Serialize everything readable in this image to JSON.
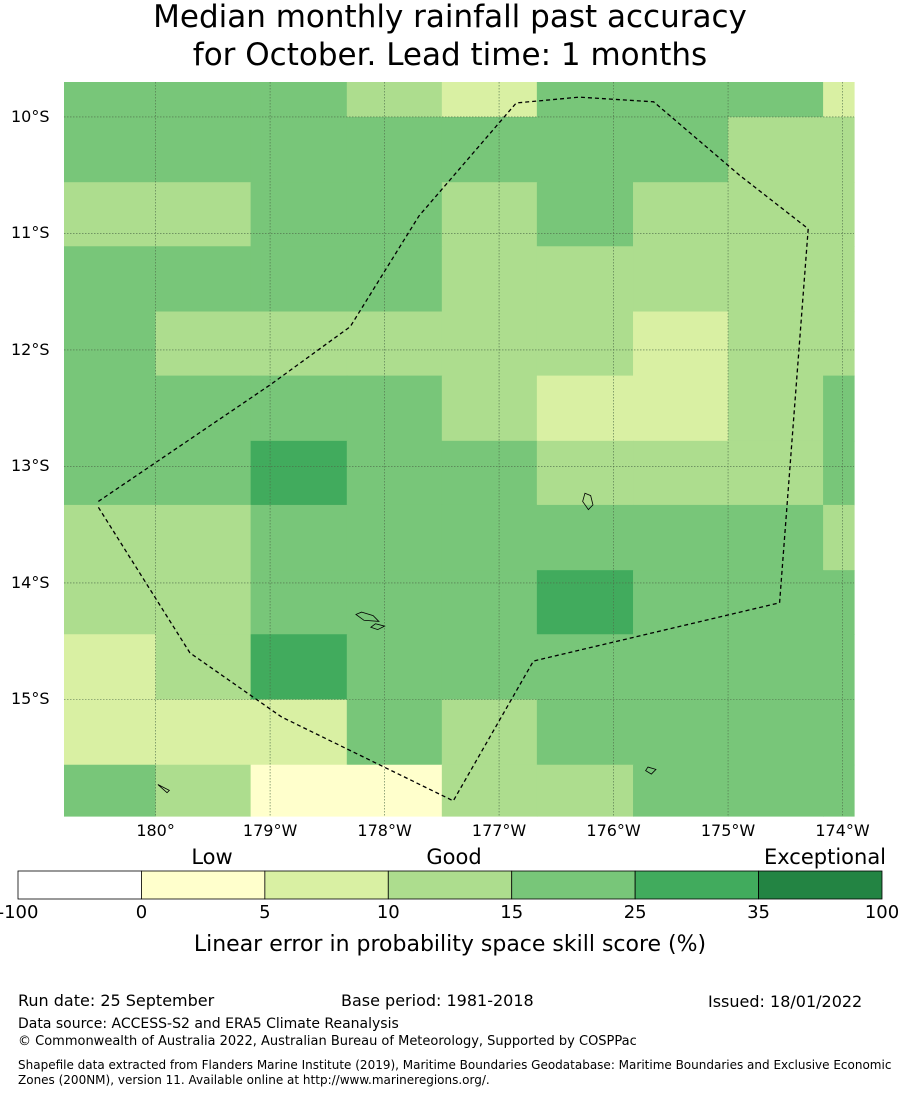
{
  "title_line1": "Median monthly rainfall past accuracy",
  "title_line2": "for October. Lead time: 1 months",
  "map": {
    "lon_range": [
      -180.8,
      -173.9
    ],
    "lat_range": [
      -16.0,
      -9.7
    ],
    "lat_ticks": [
      {
        "lat": -10,
        "label": "10°S"
      },
      {
        "lat": -11,
        "label": "11°S"
      },
      {
        "lat": -12,
        "label": "12°S"
      },
      {
        "lat": -13,
        "label": "13°S"
      },
      {
        "lat": -14,
        "label": "14°S"
      },
      {
        "lat": -15,
        "label": "15°S"
      }
    ],
    "lon_ticks": [
      {
        "lon": -180,
        "label": "180°"
      },
      {
        "lon": -179,
        "label": "179°W"
      },
      {
        "lon": -178,
        "label": "178°W"
      },
      {
        "lon": -177,
        "label": "177°W"
      },
      {
        "lon": -176,
        "label": "176°W"
      },
      {
        "lon": -175,
        "label": "175°W"
      },
      {
        "lon": -174,
        "label": "174°W"
      }
    ],
    "grid_lines": true,
    "skill_grid": {
      "lon_edges": [
        -180.8,
        -180.0,
        -179.17,
        -178.33,
        -177.5,
        -176.67,
        -175.83,
        -175.0,
        -174.17,
        -173.9
      ],
      "lat_edges": [
        -9.7,
        -10.0,
        -10.56,
        -11.11,
        -11.67,
        -12.22,
        -12.78,
        -13.33,
        -13.89,
        -14.44,
        -15.0,
        -15.56,
        -16.0
      ],
      "values_pct": [
        [
          20,
          20,
          20,
          12,
          7,
          20,
          20,
          20,
          7
        ],
        [
          20,
          20,
          20,
          20,
          20,
          20,
          20,
          12,
          12
        ],
        [
          12,
          12,
          20,
          20,
          12,
          20,
          12,
          12,
          12
        ],
        [
          20,
          20,
          20,
          20,
          12,
          12,
          12,
          12,
          12
        ],
        [
          20,
          12,
          12,
          12,
          12,
          12,
          7,
          12,
          12
        ],
        [
          20,
          20,
          20,
          20,
          12,
          7,
          7,
          12,
          20
        ],
        [
          20,
          20,
          30,
          20,
          20,
          12,
          12,
          12,
          20
        ],
        [
          12,
          12,
          20,
          20,
          20,
          20,
          20,
          20,
          12
        ],
        [
          12,
          12,
          20,
          20,
          20,
          30,
          20,
          20,
          20
        ],
        [
          7,
          12,
          30,
          20,
          20,
          20,
          20,
          20,
          20
        ],
        [
          7,
          7,
          7,
          20,
          12,
          20,
          20,
          20,
          20
        ],
        [
          20,
          12,
          3,
          3,
          12,
          12,
          20,
          20,
          20
        ]
      ]
    },
    "eez_boundary": [
      [
        -180.5,
        -13.3
      ],
      [
        -179.0,
        -12.3
      ],
      [
        -178.3,
        -11.8
      ],
      [
        -177.7,
        -10.85
      ],
      [
        -176.85,
        -9.88
      ],
      [
        -176.3,
        -9.83
      ],
      [
        -175.65,
        -9.87
      ],
      [
        -174.9,
        -10.5
      ],
      [
        -174.3,
        -10.96
      ],
      [
        -174.55,
        -14.17
      ],
      [
        -176.7,
        -14.67
      ],
      [
        -177.4,
        -15.87
      ],
      [
        -178.9,
        -15.15
      ],
      [
        -179.7,
        -14.6
      ],
      [
        -180.5,
        -13.35
      ]
    ],
    "islands": [
      {
        "name": "",
        "points": [
          [
            -176.25,
            -13.23
          ],
          [
            -176.2,
            -13.25
          ],
          [
            -176.18,
            -13.33
          ],
          [
            -176.22,
            -13.37
          ],
          [
            -176.27,
            -13.3
          ]
        ]
      },
      {
        "name": "",
        "points": [
          [
            -178.2,
            -14.25
          ],
          [
            -178.1,
            -14.28
          ],
          [
            -178.05,
            -14.33
          ],
          [
            -178.18,
            -14.32
          ],
          [
            -178.25,
            -14.27
          ]
        ]
      },
      {
        "name": "",
        "points": [
          [
            -178.08,
            -14.35
          ],
          [
            -178.0,
            -14.37
          ],
          [
            -178.06,
            -14.4
          ],
          [
            -178.12,
            -14.38
          ]
        ]
      },
      {
        "name": "",
        "points": [
          [
            -175.7,
            -15.58
          ],
          [
            -175.63,
            -15.6
          ],
          [
            -175.67,
            -15.64
          ],
          [
            -175.72,
            -15.61
          ]
        ]
      },
      {
        "name": "",
        "points": [
          [
            -179.98,
            -15.73
          ],
          [
            -179.88,
            -15.78
          ],
          [
            -179.9,
            -15.8
          ]
        ]
      }
    ]
  },
  "colorbar": {
    "bins": [
      {
        "from": -100,
        "to": 0,
        "color": "#ffffff"
      },
      {
        "from": 0,
        "to": 5,
        "color": "#ffffcc"
      },
      {
        "from": 5,
        "to": 10,
        "color": "#d9f0a3"
      },
      {
        "from": 10,
        "to": 15,
        "color": "#addd8e"
      },
      {
        "from": 15,
        "to": 25,
        "color": "#78c679"
      },
      {
        "from": 25,
        "to": 35,
        "color": "#41ab5d"
      },
      {
        "from": 35,
        "to": 100,
        "color": "#238443"
      }
    ],
    "tick_labels": [
      "-100",
      "0",
      "5",
      "10",
      "15",
      "25",
      "35",
      "100"
    ],
    "categories": [
      "Low",
      "Good",
      "Exceptional"
    ],
    "title": "Linear error in probability space skill score (%)"
  },
  "footer": {
    "run_date": "Run date: 25 September",
    "base_period": "Base period: 1981-2018",
    "issued": "Issued: 18/01/2022",
    "data_source": "Data source: ACCESS-S2 and ERA5 Climate Reanalysis",
    "copyright": "© Commonwealth of Australia 2022, Australian Bureau of Meteorology, Supported by COSPPac",
    "shapefile_line1": "Shapefile data extracted from Flanders Marine Institute (2019), Maritime Boundaries Geodatabase: Maritime Boundaries and Exclusive Economic",
    "shapefile_line2": "Zones (200NM), version 11. Available online at http://www.marineregions.org/."
  }
}
